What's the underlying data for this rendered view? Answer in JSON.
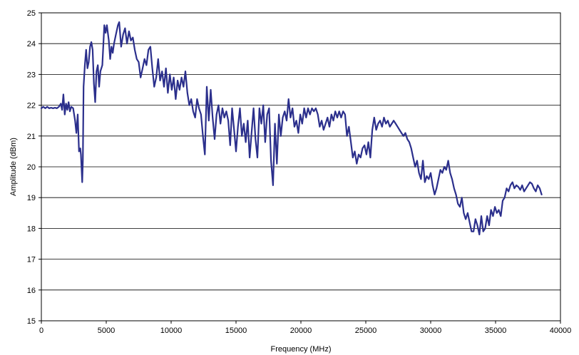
{
  "chart_data": {
    "type": "line",
    "title": "",
    "xlabel": "Frequency (MHz)",
    "ylabel": "Amplitude (dBm)",
    "xlim": [
      0,
      40000
    ],
    "ylim": [
      15,
      25
    ],
    "xticks": [
      0,
      5000,
      10000,
      15000,
      20000,
      25000,
      30000,
      35000,
      40000
    ],
    "yticks": [
      15,
      16,
      17,
      18,
      19,
      20,
      21,
      22,
      23,
      24,
      25
    ],
    "grid": "horizontal",
    "legend": "none",
    "series": [
      {
        "color": "#2b2f8c",
        "points": [
          [
            0,
            21.9
          ],
          [
            150,
            21.95
          ],
          [
            300,
            21.9
          ],
          [
            450,
            21.95
          ],
          [
            600,
            21.9
          ],
          [
            750,
            21.92
          ],
          [
            900,
            21.9
          ],
          [
            1050,
            21.92
          ],
          [
            1200,
            21.9
          ],
          [
            1350,
            21.95
          ],
          [
            1500,
            22.05
          ],
          [
            1600,
            21.85
          ],
          [
            1700,
            22.35
          ],
          [
            1800,
            21.7
          ],
          [
            1900,
            22.05
          ],
          [
            2000,
            21.85
          ],
          [
            2100,
            22.1
          ],
          [
            2200,
            21.8
          ],
          [
            2300,
            21.95
          ],
          [
            2450,
            21.9
          ],
          [
            2600,
            21.5
          ],
          [
            2700,
            21.1
          ],
          [
            2800,
            21.7
          ],
          [
            2900,
            20.5
          ],
          [
            3000,
            20.6
          ],
          [
            3050,
            20.4
          ],
          [
            3150,
            19.5
          ],
          [
            3200,
            20.2
          ],
          [
            3250,
            22.6
          ],
          [
            3350,
            23.3
          ],
          [
            3450,
            23.8
          ],
          [
            3550,
            23.2
          ],
          [
            3650,
            23.4
          ],
          [
            3750,
            23.9
          ],
          [
            3850,
            24.05
          ],
          [
            3950,
            23.8
          ],
          [
            4050,
            22.7
          ],
          [
            4150,
            22.1
          ],
          [
            4250,
            23.1
          ],
          [
            4350,
            23.3
          ],
          [
            4450,
            22.6
          ],
          [
            4550,
            23.1
          ],
          [
            4700,
            23.3
          ],
          [
            4850,
            24.6
          ],
          [
            4950,
            24.35
          ],
          [
            5050,
            24.6
          ],
          [
            5200,
            24.1
          ],
          [
            5300,
            23.5
          ],
          [
            5400,
            23.9
          ],
          [
            5500,
            23.7
          ],
          [
            5600,
            24.0
          ],
          [
            5750,
            24.3
          ],
          [
            5900,
            24.6
          ],
          [
            6000,
            24.7
          ],
          [
            6150,
            23.9
          ],
          [
            6300,
            24.3
          ],
          [
            6450,
            24.5
          ],
          [
            6600,
            24.0
          ],
          [
            6750,
            24.4
          ],
          [
            6900,
            24.1
          ],
          [
            7050,
            24.2
          ],
          [
            7200,
            23.8
          ],
          [
            7350,
            23.5
          ],
          [
            7500,
            23.4
          ],
          [
            7650,
            22.9
          ],
          [
            7800,
            23.2
          ],
          [
            7950,
            23.5
          ],
          [
            8100,
            23.3
          ],
          [
            8250,
            23.8
          ],
          [
            8400,
            23.9
          ],
          [
            8550,
            23.2
          ],
          [
            8700,
            22.6
          ],
          [
            8850,
            22.9
          ],
          [
            9000,
            23.5
          ],
          [
            9150,
            22.8
          ],
          [
            9300,
            23.1
          ],
          [
            9450,
            22.6
          ],
          [
            9600,
            23.2
          ],
          [
            9750,
            22.4
          ],
          [
            9900,
            23.0
          ],
          [
            10050,
            22.5
          ],
          [
            10200,
            22.9
          ],
          [
            10350,
            22.2
          ],
          [
            10500,
            22.8
          ],
          [
            10650,
            22.5
          ],
          [
            10800,
            22.9
          ],
          [
            10950,
            22.6
          ],
          [
            11100,
            23.1
          ],
          [
            11250,
            22.4
          ],
          [
            11400,
            22.0
          ],
          [
            11550,
            22.2
          ],
          [
            11700,
            21.8
          ],
          [
            11850,
            21.6
          ],
          [
            12000,
            22.2
          ],
          [
            12150,
            21.9
          ],
          [
            12300,
            21.7
          ],
          [
            12450,
            21.0
          ],
          [
            12600,
            20.4
          ],
          [
            12750,
            22.6
          ],
          [
            12900,
            21.5
          ],
          [
            13050,
            22.5
          ],
          [
            13200,
            21.6
          ],
          [
            13350,
            20.9
          ],
          [
            13500,
            21.7
          ],
          [
            13650,
            22.0
          ],
          [
            13800,
            21.4
          ],
          [
            13950,
            21.9
          ],
          [
            14100,
            21.6
          ],
          [
            14250,
            21.8
          ],
          [
            14400,
            21.5
          ],
          [
            14550,
            20.7
          ],
          [
            14700,
            21.9
          ],
          [
            14850,
            21.2
          ],
          [
            15000,
            20.5
          ],
          [
            15150,
            21.3
          ],
          [
            15300,
            21.9
          ],
          [
            15450,
            21.0
          ],
          [
            15600,
            21.4
          ],
          [
            15750,
            20.8
          ],
          [
            15900,
            21.5
          ],
          [
            16050,
            20.3
          ],
          [
            16200,
            21.1
          ],
          [
            16350,
            21.9
          ],
          [
            16500,
            20.9
          ],
          [
            16650,
            20.3
          ],
          [
            16800,
            21.9
          ],
          [
            16950,
            21.4
          ],
          [
            17100,
            22.0
          ],
          [
            17250,
            20.8
          ],
          [
            17400,
            21.7
          ],
          [
            17550,
            21.9
          ],
          [
            17700,
            20.2
          ],
          [
            17850,
            19.4
          ],
          [
            18000,
            21.4
          ],
          [
            18150,
            20.1
          ],
          [
            18300,
            21.7
          ],
          [
            18450,
            21.0
          ],
          [
            18600,
            21.6
          ],
          [
            18750,
            21.8
          ],
          [
            18900,
            21.5
          ],
          [
            19050,
            22.2
          ],
          [
            19200,
            21.6
          ],
          [
            19350,
            21.9
          ],
          [
            19500,
            21.3
          ],
          [
            19650,
            21.5
          ],
          [
            19800,
            21.1
          ],
          [
            19950,
            21.7
          ],
          [
            20100,
            21.4
          ],
          [
            20250,
            21.9
          ],
          [
            20400,
            21.6
          ],
          [
            20550,
            21.9
          ],
          [
            20700,
            21.7
          ],
          [
            20850,
            21.9
          ],
          [
            21000,
            21.8
          ],
          [
            21150,
            21.9
          ],
          [
            21300,
            21.7
          ],
          [
            21450,
            21.3
          ],
          [
            21600,
            21.5
          ],
          [
            21750,
            21.2
          ],
          [
            21900,
            21.4
          ],
          [
            22050,
            21.6
          ],
          [
            22200,
            21.3
          ],
          [
            22350,
            21.7
          ],
          [
            22500,
            21.5
          ],
          [
            22650,
            21.8
          ],
          [
            22800,
            21.6
          ],
          [
            22950,
            21.8
          ],
          [
            23100,
            21.6
          ],
          [
            23250,
            21.8
          ],
          [
            23400,
            21.7
          ],
          [
            23550,
            21.0
          ],
          [
            23700,
            21.3
          ],
          [
            23850,
            20.8
          ],
          [
            24000,
            20.3
          ],
          [
            24150,
            20.5
          ],
          [
            24300,
            20.1
          ],
          [
            24450,
            20.4
          ],
          [
            24600,
            20.3
          ],
          [
            24750,
            20.6
          ],
          [
            24900,
            20.7
          ],
          [
            25050,
            20.4
          ],
          [
            25200,
            20.8
          ],
          [
            25350,
            20.3
          ],
          [
            25500,
            21.2
          ],
          [
            25650,
            21.6
          ],
          [
            25800,
            21.2
          ],
          [
            25950,
            21.4
          ],
          [
            26100,
            21.5
          ],
          [
            26250,
            21.3
          ],
          [
            26400,
            21.6
          ],
          [
            26550,
            21.4
          ],
          [
            26700,
            21.5
          ],
          [
            26850,
            21.3
          ],
          [
            27000,
            21.4
          ],
          [
            27150,
            21.5
          ],
          [
            27300,
            21.4
          ],
          [
            27450,
            21.3
          ],
          [
            27600,
            21.2
          ],
          [
            27750,
            21.1
          ],
          [
            27900,
            21.0
          ],
          [
            28050,
            21.1
          ],
          [
            28200,
            20.9
          ],
          [
            28350,
            20.8
          ],
          [
            28500,
            20.6
          ],
          [
            28650,
            20.3
          ],
          [
            28800,
            20.0
          ],
          [
            28950,
            20.2
          ],
          [
            29100,
            19.8
          ],
          [
            29250,
            19.6
          ],
          [
            29400,
            20.2
          ],
          [
            29550,
            19.5
          ],
          [
            29700,
            19.7
          ],
          [
            29850,
            19.6
          ],
          [
            30000,
            19.8
          ],
          [
            30150,
            19.4
          ],
          [
            30300,
            19.1
          ],
          [
            30450,
            19.3
          ],
          [
            30600,
            19.6
          ],
          [
            30750,
            19.9
          ],
          [
            30900,
            19.8
          ],
          [
            31050,
            20.0
          ],
          [
            31200,
            19.9
          ],
          [
            31350,
            20.2
          ],
          [
            31500,
            19.8
          ],
          [
            31650,
            19.6
          ],
          [
            31800,
            19.3
          ],
          [
            31950,
            19.1
          ],
          [
            32100,
            18.8
          ],
          [
            32250,
            18.7
          ],
          [
            32400,
            19.0
          ],
          [
            32550,
            18.5
          ],
          [
            32700,
            18.3
          ],
          [
            32850,
            18.5
          ],
          [
            33000,
            18.2
          ],
          [
            33150,
            17.9
          ],
          [
            33300,
            17.9
          ],
          [
            33450,
            18.3
          ],
          [
            33600,
            18.1
          ],
          [
            33750,
            17.8
          ],
          [
            33900,
            18.4
          ],
          [
            34050,
            17.9
          ],
          [
            34200,
            18.0
          ],
          [
            34350,
            18.4
          ],
          [
            34500,
            18.1
          ],
          [
            34650,
            18.6
          ],
          [
            34800,
            18.4
          ],
          [
            34950,
            18.7
          ],
          [
            35100,
            18.5
          ],
          [
            35250,
            18.6
          ],
          [
            35400,
            18.4
          ],
          [
            35550,
            18.9
          ],
          [
            35700,
            19.0
          ],
          [
            35850,
            19.3
          ],
          [
            36000,
            19.2
          ],
          [
            36150,
            19.4
          ],
          [
            36300,
            19.5
          ],
          [
            36450,
            19.3
          ],
          [
            36600,
            19.4
          ],
          [
            36750,
            19.35
          ],
          [
            36900,
            19.25
          ],
          [
            37050,
            19.4
          ],
          [
            37200,
            19.2
          ],
          [
            37350,
            19.3
          ],
          [
            37500,
            19.4
          ],
          [
            37650,
            19.5
          ],
          [
            37800,
            19.45
          ],
          [
            37950,
            19.3
          ],
          [
            38100,
            19.2
          ],
          [
            38250,
            19.4
          ],
          [
            38400,
            19.3
          ],
          [
            38550,
            19.1
          ]
        ]
      }
    ]
  }
}
